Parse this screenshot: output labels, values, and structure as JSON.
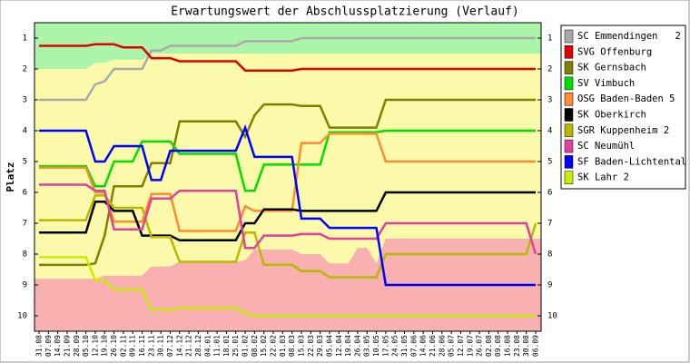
{
  "chart_data": {
    "type": "line",
    "title": "Erwartungswert der Abschlussplatzierung (Verlauf)",
    "y_label": "Platz",
    "categories": [
      "31.08",
      "07.09",
      "14.09",
      "21.09",
      "28.09",
      "05.10",
      "12.10",
      "19.10",
      "26.10",
      "02.11",
      "09.11",
      "16.11",
      "23.11",
      "30.11",
      "07.12",
      "14.12",
      "21.12",
      "28.12",
      "04.01",
      "11.01",
      "18.01",
      "25.01",
      "01.02",
      "08.02",
      "15.02",
      "22.02",
      "01.03",
      "08.03",
      "15.03",
      "22.03",
      "29.03",
      "05.04",
      "12.04",
      "19.04",
      "26.04",
      "03.05",
      "10.05",
      "17.05",
      "24.05",
      "31.05",
      "07.06",
      "14.06",
      "21.06",
      "28.06",
      "05.07",
      "12.07",
      "19.07",
      "26.07",
      "02.08",
      "09.08",
      "16.08",
      "23.08",
      "30.08",
      "06.09"
    ],
    "ylim": [
      10.5,
      0.5
    ],
    "yticks": [
      1,
      2,
      3,
      4,
      5,
      6,
      7,
      8,
      9,
      10
    ],
    "background": "#fafaaa",
    "zones": [
      {
        "color": "#aaf5aa",
        "edge": "top",
        "values": [
          2,
          2,
          2,
          2,
          2,
          2,
          1.8,
          1.8,
          1.7,
          1.7,
          1.7,
          1.7,
          1.5,
          1.5,
          1.5,
          1.5,
          1.5,
          1.5,
          1.5,
          1.5,
          1.5,
          1.5,
          1.5,
          1.5,
          1.5,
          1.5,
          1.5,
          1.5,
          1.5,
          1.5,
          1.5,
          1.5,
          1.5,
          1.5,
          1.5,
          1.5,
          1.5,
          1.5,
          1.5,
          1.5,
          1.5,
          1.5,
          1.5,
          1.5,
          1.5,
          1.5,
          1.5,
          1.5,
          1.5,
          1.5,
          1.5,
          1.5,
          1.5,
          1.5
        ]
      },
      {
        "color": "#f8b0b0",
        "edge": "bottom",
        "values": [
          8.8,
          8.8,
          8.8,
          8.8,
          8.8,
          8.8,
          8.8,
          8.7,
          8.7,
          8.7,
          8.7,
          8.7,
          8.4,
          8.4,
          8.4,
          8.25,
          8.25,
          8.25,
          8.25,
          8.25,
          8.25,
          8.25,
          8.2,
          7.85,
          7.85,
          7.85,
          7.85,
          7.85,
          8,
          8,
          8,
          8.3,
          8.3,
          8.3,
          7.8,
          7.8,
          8.3,
          7.5,
          7.5,
          7.5,
          7.5,
          7.5,
          7.5,
          7.5,
          7.5,
          7.5,
          7.5,
          7.5,
          7.5,
          7.5,
          7.5,
          7.5,
          7.5,
          7.5
        ]
      }
    ],
    "legend": "right",
    "series": [
      {
        "name": "SC Emmendingen   2",
        "color": "#aaaaaa",
        "values": [
          3,
          3,
          3,
          3,
          3,
          3,
          2.5,
          2.4,
          2,
          2,
          2,
          2,
          1.4,
          1.4,
          1.25,
          1.25,
          1.25,
          1.25,
          1.25,
          1.25,
          1.25,
          1.25,
          1.1,
          1.1,
          1.1,
          1.1,
          1.1,
          1.1,
          1,
          1,
          1,
          1,
          1,
          1,
          1,
          1,
          1,
          1,
          1,
          1,
          1,
          1,
          1,
          1,
          1,
          1,
          1,
          1,
          1,
          1,
          1,
          1,
          1,
          1
        ]
      },
      {
        "name": "SVG Offenburg",
        "color": "#e00000",
        "values": [
          1.25,
          1.25,
          1.25,
          1.25,
          1.25,
          1.25,
          1.2,
          1.2,
          1.2,
          1.3,
          1.3,
          1.3,
          1.65,
          1.65,
          1.65,
          1.75,
          1.75,
          1.75,
          1.75,
          1.75,
          1.75,
          1.75,
          2.05,
          2.05,
          2.05,
          2.05,
          2.05,
          2.05,
          2,
          2,
          2,
          2,
          2,
          2,
          2,
          2,
          2,
          2,
          2,
          2,
          2,
          2,
          2,
          2,
          2,
          2,
          2,
          2,
          2,
          2,
          2,
          2,
          2,
          2
        ]
      },
      {
        "name": "SK Gernsbach",
        "color": "#808000",
        "values": [
          8.35,
          8.35,
          8.35,
          8.35,
          8.35,
          8.35,
          8.3,
          7.4,
          5.8,
          5.8,
          5.8,
          5.8,
          5.05,
          5.05,
          5.05,
          3.7,
          3.7,
          3.7,
          3.7,
          3.7,
          3.7,
          3.7,
          4.2,
          3.5,
          3.15,
          3.15,
          3.15,
          3.15,
          3.2,
          3.2,
          3.2,
          3.9,
          3.9,
          3.9,
          3.9,
          3.9,
          3.9,
          3,
          3,
          3,
          3,
          3,
          3,
          3,
          3,
          3,
          3,
          3,
          3,
          3,
          3,
          3,
          3,
          3
        ]
      },
      {
        "name": "SV Vimbuch",
        "color": "#00e000",
        "values": [
          5.15,
          5.15,
          5.15,
          5.15,
          5.15,
          5.15,
          5.8,
          5.8,
          5,
          5,
          5,
          4.35,
          4.35,
          4.35,
          4.35,
          4.75,
          4.75,
          4.75,
          4.75,
          4.75,
          4.75,
          4.75,
          5.95,
          5.95,
          5.1,
          5.1,
          5.1,
          5.1,
          5.1,
          5.1,
          5.1,
          4.05,
          4.05,
          4.05,
          4.05,
          4.05,
          4.05,
          4,
          4,
          4,
          4,
          4,
          4,
          4,
          4,
          4,
          4,
          4,
          4,
          4,
          4,
          4,
          4,
          4
        ]
      },
      {
        "name": "OSG Baden-Baden 5",
        "color": "#ff8c30",
        "values": [
          5.2,
          5.2,
          5.2,
          5.2,
          5.2,
          5.2,
          6,
          6,
          6.95,
          6.95,
          6.95,
          6.95,
          6.05,
          6.05,
          6.05,
          7.25,
          7.25,
          7.25,
          7.25,
          7.25,
          7.25,
          7.25,
          6.45,
          6.6,
          6.6,
          6.6,
          6.6,
          6.6,
          4.4,
          4.4,
          4.4,
          4.1,
          4.1,
          4.1,
          4.1,
          4.1,
          4.1,
          5,
          5,
          5,
          5,
          5,
          5,
          5,
          5,
          5,
          5,
          5,
          5,
          5,
          5,
          5,
          5,
          5
        ]
      },
      {
        "name": "SK Oberkirch",
        "color": "#000000",
        "values": [
          7.3,
          7.3,
          7.3,
          7.3,
          7.3,
          7.3,
          6.3,
          6.3,
          6.6,
          6.6,
          6.6,
          7.4,
          7.4,
          7.4,
          7.4,
          7.55,
          7.55,
          7.55,
          7.55,
          7.55,
          7.55,
          7.55,
          7,
          7,
          6.55,
          6.55,
          6.55,
          6.55,
          6.6,
          6.6,
          6.6,
          6.6,
          6.6,
          6.6,
          6.6,
          6.6,
          6.6,
          6,
          6,
          6,
          6,
          6,
          6,
          6,
          6,
          6,
          6,
          6,
          6,
          6,
          6,
          6,
          6,
          6
        ]
      },
      {
        "name": "SGR Kuppenheim 2",
        "color": "#b8b800",
        "values": [
          6.9,
          6.9,
          6.9,
          6.9,
          6.9,
          6.9,
          6.1,
          6.1,
          6.5,
          6.5,
          6.5,
          6.5,
          7.45,
          7.45,
          7.45,
          8.25,
          8.25,
          8.25,
          8.25,
          8.25,
          8.25,
          8.25,
          7.3,
          7.3,
          8.35,
          8.35,
          8.35,
          8.35,
          8.55,
          8.55,
          8.55,
          8.75,
          8.75,
          8.75,
          8.75,
          8.75,
          8.75,
          8,
          8,
          8,
          8,
          8,
          8,
          8,
          8,
          8,
          8,
          8,
          8,
          8,
          8,
          8,
          8,
          7
        ]
      },
      {
        "name": "SC Neumühl",
        "color": "#e040a0",
        "values": [
          5.75,
          5.75,
          5.75,
          5.75,
          5.75,
          5.75,
          5.95,
          5.95,
          7.2,
          7.2,
          7.2,
          7.2,
          6.2,
          6.2,
          6.2,
          5.95,
          5.95,
          5.95,
          5.95,
          5.95,
          5.95,
          5.95,
          7.8,
          7.8,
          7.4,
          7.4,
          7.4,
          7.4,
          7.35,
          7.35,
          7.35,
          7.5,
          7.5,
          7.5,
          7.5,
          7.5,
          7.5,
          7,
          7,
          7,
          7,
          7,
          7,
          7,
          7,
          7,
          7,
          7,
          7,
          7,
          7,
          7,
          7,
          8
        ]
      },
      {
        "name": "SF Baden-Lichtental",
        "color": "#0000ff",
        "values": [
          4,
          4,
          4,
          4,
          4,
          4,
          5,
          5,
          4.5,
          4.5,
          4.5,
          4.5,
          5.6,
          5.6,
          4.65,
          4.65,
          4.65,
          4.65,
          4.65,
          4.65,
          4.65,
          4.65,
          3.9,
          4.85,
          4.85,
          4.85,
          4.85,
          4.85,
          6.85,
          6.85,
          6.85,
          7.15,
          7.15,
          7.15,
          7.15,
          7.15,
          7.15,
          9,
          9,
          9,
          9,
          9,
          9,
          9,
          9,
          9,
          9,
          9,
          9,
          9,
          9,
          9,
          9,
          9
        ]
      },
      {
        "name": "SK Lahr 2",
        "color": "#c8ee00",
        "values": [
          8.1,
          8.1,
          8.1,
          8.1,
          8.1,
          8.1,
          8.85,
          8.85,
          9.15,
          9.15,
          9.15,
          9.15,
          9.8,
          9.8,
          9.8,
          9.75,
          9.75,
          9.75,
          9.75,
          9.75,
          9.75,
          9.75,
          9.9,
          10,
          10,
          10,
          10,
          10,
          10,
          10,
          10,
          10,
          10,
          10,
          10,
          10,
          10,
          10,
          10,
          10,
          10,
          10,
          10,
          10,
          10,
          10,
          10,
          10,
          10,
          10,
          10,
          10,
          10,
          10
        ]
      }
    ]
  }
}
